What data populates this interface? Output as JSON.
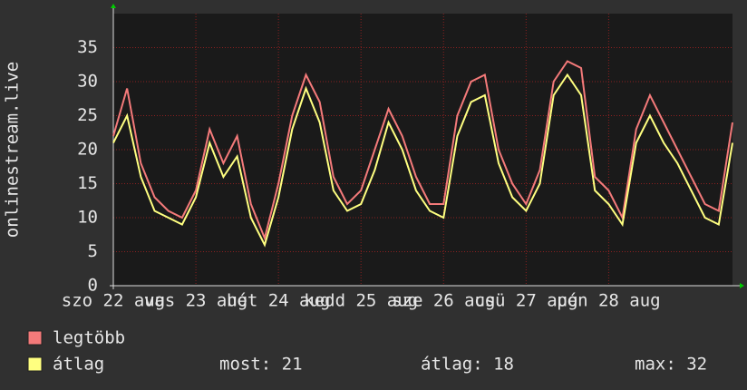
{
  "chart_data": {
    "type": "line",
    "y_label": "onlinestream.live",
    "categories": [
      "szo 22 aug",
      null,
      null,
      null,
      null,
      null,
      "vas 23 aug",
      null,
      null,
      null,
      null,
      null,
      "hét 24 aug",
      null,
      null,
      null,
      null,
      null,
      "kedd 25 aug",
      null,
      null,
      null,
      null,
      null,
      "sze 26 aug",
      null,
      null,
      null,
      null,
      null,
      "csü 27 aug",
      null,
      null,
      null,
      null,
      null,
      "pén 28 aug",
      null,
      null,
      null,
      null,
      null,
      null,
      null,
      null,
      null
    ],
    "series": [
      {
        "name": "legtöbb",
        "color": "#f47a7a",
        "values": [
          22,
          29,
          18,
          13,
          11,
          10,
          14,
          23,
          18,
          22,
          12,
          7,
          15,
          25,
          31,
          27,
          16,
          12,
          14,
          20,
          26,
          22,
          16,
          12,
          12,
          25,
          30,
          31,
          20,
          15,
          12,
          17,
          30,
          33,
          32,
          16,
          14,
          10,
          23,
          28,
          24,
          20,
          16,
          12,
          11,
          24
        ]
      },
      {
        "name": "átlag",
        "color": "#ffff80",
        "values": [
          21,
          25,
          16,
          11,
          10,
          9,
          13,
          21,
          16,
          19,
          10,
          6,
          13,
          23,
          29,
          24,
          14,
          11,
          12,
          17,
          24,
          20,
          14,
          11,
          10,
          22,
          27,
          28,
          18,
          13,
          11,
          15,
          28,
          31,
          28,
          14,
          12,
          9,
          21,
          25,
          21,
          18,
          14,
          10,
          9,
          21
        ]
      }
    ],
    "ylim": [
      0,
      40
    ],
    "yticks": [
      0,
      5,
      10,
      15,
      20,
      25,
      30,
      35
    ],
    "grid": true,
    "stats": [
      "most: 21",
      "átlag: 18",
      "max: 32"
    ]
  }
}
